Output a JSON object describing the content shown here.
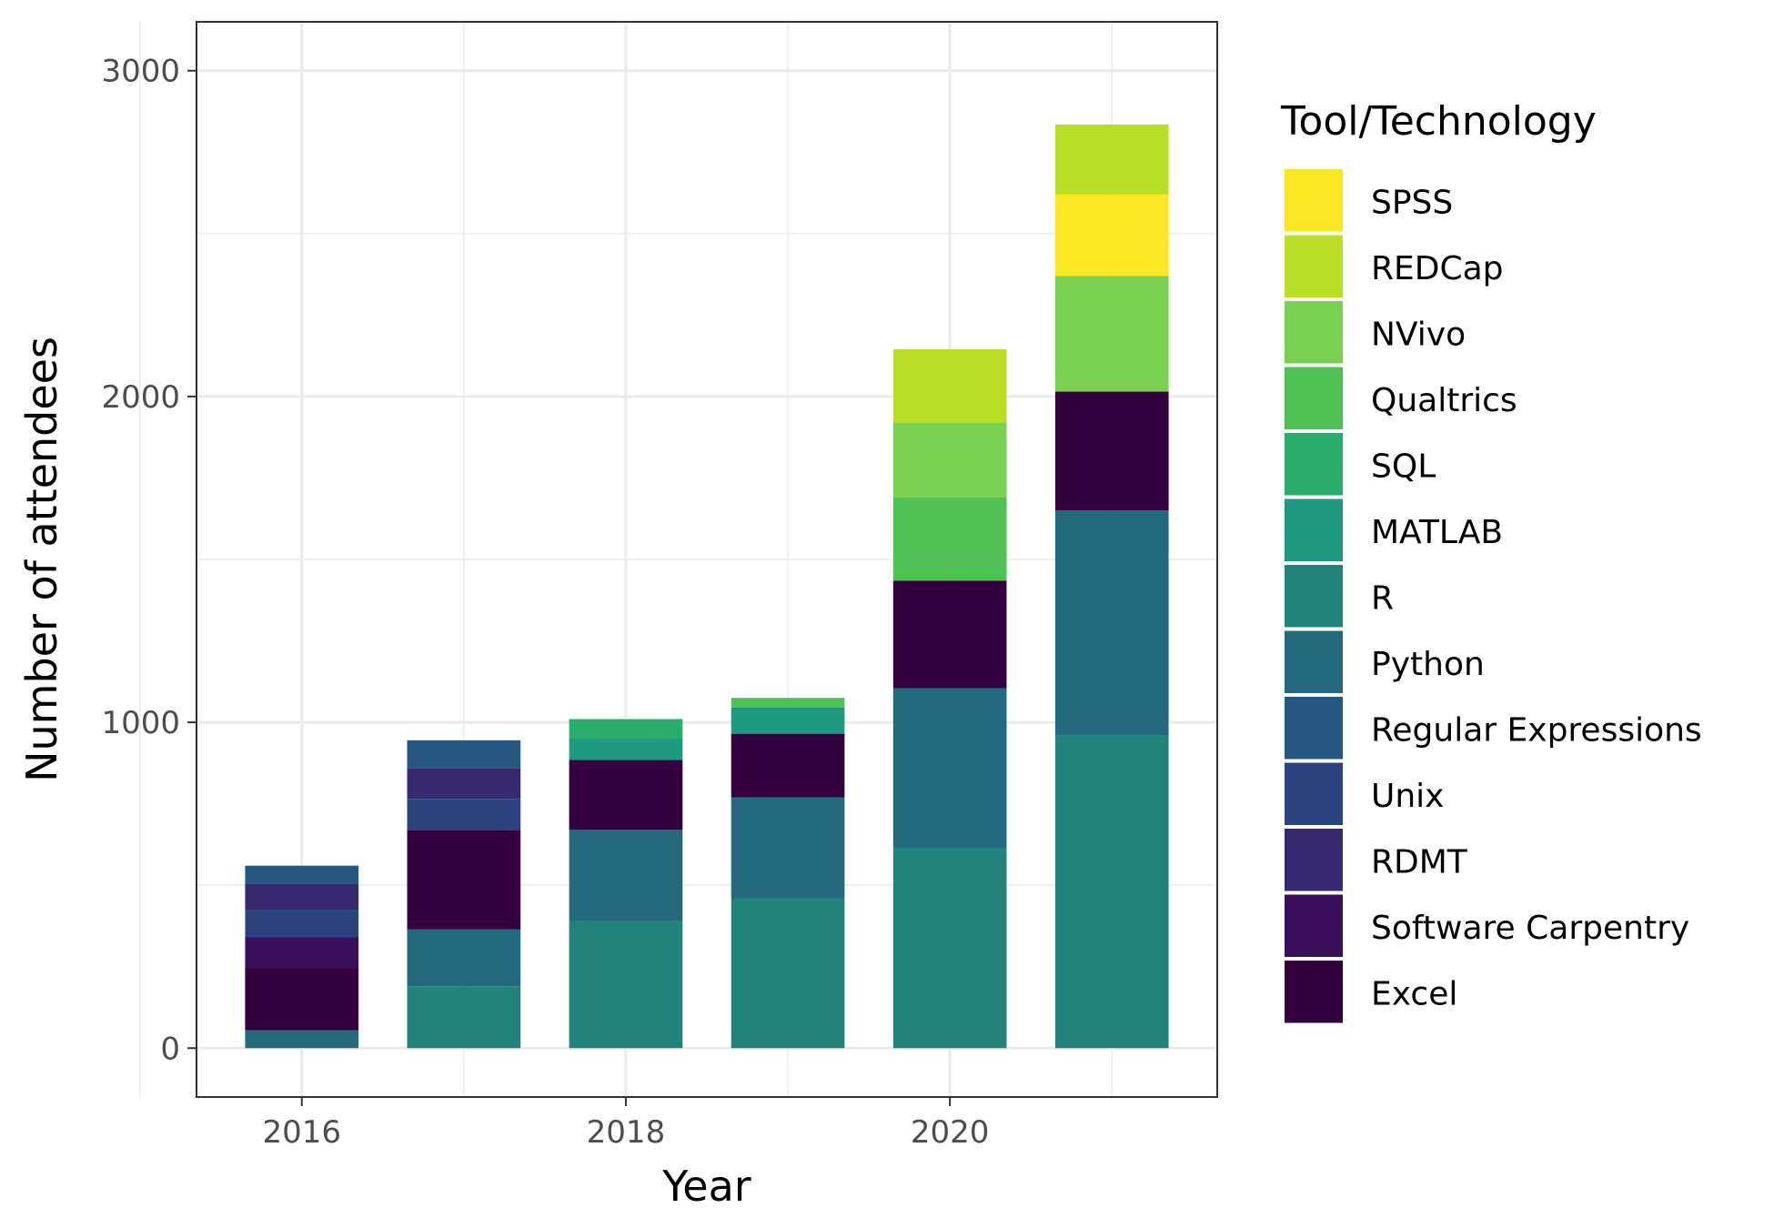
{
  "chart_data": {
    "type": "bar",
    "stacked": true,
    "xlabel": "Year",
    "ylabel": "Number of attendees",
    "categories": [
      2016,
      2017,
      2018,
      2019,
      2020,
      2021
    ],
    "x_ticks": [
      "2016",
      "2018",
      "2020"
    ],
    "y_ticks": [
      "0",
      "1000",
      "2000",
      "3000"
    ],
    "xlim": [
      2015.35,
      2021.65
    ],
    "ylim": [
      -150,
      3150
    ],
    "grid": true,
    "legend_title": "Tool/Technology",
    "legend_position": "right",
    "series": [
      {
        "name": "Excel",
        "color": "#440154",
        "values": [
          190,
          305,
          215,
          195,
          330,
          365
        ]
      },
      {
        "name": "Software Carpentry",
        "color": "#481A6C",
        "values": [
          95,
          0,
          0,
          0,
          0,
          0
        ]
      },
      {
        "name": "RDMT",
        "color": "#472F7D",
        "values": [
          80,
          95,
          0,
          0,
          0,
          0
        ]
      },
      {
        "name": "Unix",
        "color": "#414487",
        "values": [
          85,
          95,
          0,
          0,
          0,
          0
        ]
      },
      {
        "name": "Regular Expressions",
        "color": "#39568C",
        "values": [
          55,
          85,
          0,
          0,
          0,
          0
        ]
      },
      {
        "name": "Python",
        "color": "#31688E",
        "values": [
          55,
          175,
          280,
          310,
          490,
          690
        ]
      },
      {
        "name": "R",
        "color": "#287D8E",
        "values": [
          0,
          190,
          390,
          460,
          615,
          960
        ]
      },
      {
        "name": "MATLAB",
        "color": "#1F968B",
        "values": [
          0,
          0,
          65,
          80,
          0,
          0
        ]
      },
      {
        "name": "SQL",
        "color": "#20A386",
        "values": [
          0,
          0,
          60,
          0,
          0,
          0
        ]
      },
      {
        "name": "Qualtrics",
        "color": "#29AF7F",
        "values": [
          0,
          0,
          0,
          30,
          255,
          0
        ]
      },
      {
        "name": "NVivo",
        "color": "#3CBB75",
        "values": [
          0,
          0,
          0,
          0,
          230,
          355
        ]
      },
      {
        "name": "REDCap",
        "color": "#55C667",
        "values": [
          0,
          0,
          0,
          0,
          225,
          215
        ]
      },
      {
        "name": "SPSS",
        "color": "#FDE725",
        "values": [
          0,
          0,
          0,
          0,
          0,
          250
        ]
      }
    ],
    "stack_order": [
      "R",
      "Python",
      "Excel",
      "Software Carpentry",
      "Unix",
      "RDMT",
      "Regular Expressions",
      "MATLAB",
      "SQL",
      "Qualtrics",
      "NVivo",
      "SPSS",
      "REDCap"
    ],
    "legend_order": [
      "SPSS",
      "REDCap",
      "NVivo",
      "Qualtrics",
      "SQL",
      "MATLAB",
      "R",
      "Python",
      "Regular Expressions",
      "Unix",
      "RDMT",
      "Software Carpentry",
      "Excel"
    ]
  },
  "colors": {
    "SPSS": "#FDE725",
    "REDCap": "#BADE28",
    "NVivo": "#7AD151",
    "Qualtrics": "#4FC053",
    "SQL": "#2BAD6B",
    "MATLAB": "#1F9A7F",
    "R": "#21837B",
    "Python": "#24697C",
    "Regular Expressions": "#275882",
    "Unix": "#2D4380",
    "RDMT": "#37296F",
    "Software Carpentry": "#3A0F5C",
    "Excel": "#35003E"
  }
}
